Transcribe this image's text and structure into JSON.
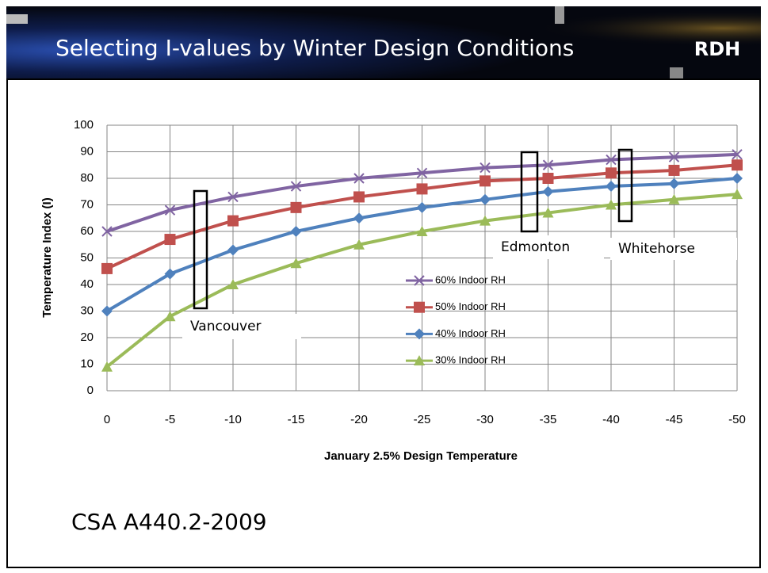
{
  "title": "Selecting I-values by Winter Design Conditions",
  "logo": "RDH",
  "footer": "CSA A440.2-2009",
  "chart_data": {
    "type": "line",
    "xlabel": "January 2.5% Design Temperature",
    "ylabel": "Temperature Index (I)",
    "x": [
      0,
      -5,
      -10,
      -15,
      -20,
      -25,
      -30,
      -35,
      -40,
      -45,
      -50
    ],
    "xlim": [
      0,
      -50
    ],
    "xticks": [
      0,
      -5,
      -10,
      -15,
      -20,
      -25,
      -30,
      -35,
      -40,
      -45,
      -50
    ],
    "ylim": [
      0,
      100
    ],
    "yticks": [
      0,
      10,
      20,
      30,
      40,
      50,
      60,
      70,
      80,
      90,
      100
    ],
    "grid": true,
    "series": [
      {
        "name": "60% Indoor RH",
        "color": "#8064a2",
        "marker": "x",
        "values": [
          60,
          68,
          73,
          77,
          80,
          82,
          84,
          85,
          87,
          88,
          89
        ]
      },
      {
        "name": "50% Indoor RH",
        "color": "#c0504d",
        "marker": "square",
        "values": [
          46,
          57,
          64,
          69,
          73,
          76,
          79,
          80,
          82,
          83,
          85
        ]
      },
      {
        "name": "40% Indoor RH",
        "color": "#4f81bd",
        "marker": "diamond",
        "values": [
          30,
          44,
          53,
          60,
          65,
          69,
          72,
          75,
          77,
          78,
          80
        ]
      },
      {
        "name": "30% Indoor RH",
        "color": "#9bbb59",
        "marker": "triangle",
        "values": [
          9,
          28,
          40,
          48,
          55,
          60,
          64,
          67,
          70,
          72,
          74
        ]
      }
    ],
    "annotations": [
      "Vancouver",
      "Edmonton",
      "Whitehorse"
    ]
  }
}
